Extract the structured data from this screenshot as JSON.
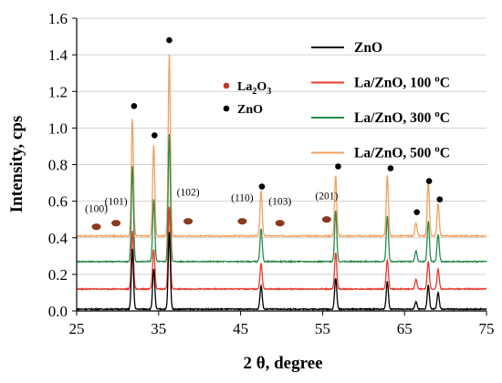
{
  "chart_data": {
    "type": "line",
    "title": "",
    "xlabel": "2 θ, degree",
    "ylabel": "Intensity, cps",
    "xlim": [
      25,
      75
    ],
    "ylim": [
      0,
      1.6
    ],
    "xticks": [
      25,
      35,
      45,
      55,
      65,
      75
    ],
    "yticks": [
      0.0,
      0.2,
      0.4,
      0.6,
      0.8,
      1.0,
      1.2,
      1.4,
      1.6
    ],
    "legend_position": "top-right",
    "peaks_2theta": [
      31.8,
      34.4,
      36.3,
      47.5,
      56.6,
      62.9,
      66.4,
      67.9,
      69.1
    ],
    "series": [
      {
        "name": "ZnO",
        "color": "#000000",
        "baseline": 0.01,
        "peak_heights": [
          0.33,
          0.22,
          0.42,
          0.13,
          0.17,
          0.15,
          0.04,
          0.13,
          0.09
        ]
      },
      {
        "name": "La/ZnO, 100 oC",
        "color": "#e8392b",
        "baseline": 0.12,
        "peak_heights": [
          0.32,
          0.22,
          0.45,
          0.14,
          0.2,
          0.16,
          0.05,
          0.15,
          0.11
        ]
      },
      {
        "name": "La/ZnO, 300 oC",
        "color": "#2a8a4a",
        "baseline": 0.27,
        "peak_heights": [
          0.52,
          0.34,
          0.7,
          0.18,
          0.28,
          0.25,
          0.06,
          0.22,
          0.15
        ]
      },
      {
        "name": "La/ZnO, 500 oC",
        "color": "#f0a060",
        "baseline": 0.41,
        "peak_heights": [
          0.64,
          0.5,
          0.99,
          0.25,
          0.33,
          0.33,
          0.07,
          0.3,
          0.18
        ]
      }
    ],
    "phase_legend": [
      {
        "label": "La",
        "sub": "2",
        "mid": "O",
        "sub2": "3",
        "color": "#c0392b"
      },
      {
        "label": "ZnO",
        "color": "#000000"
      }
    ],
    "zno_markers": [
      {
        "x": 32.0,
        "y": 1.12
      },
      {
        "x": 34.5,
        "y": 0.96
      },
      {
        "x": 36.3,
        "y": 1.48
      },
      {
        "x": 47.6,
        "y": 0.68
      },
      {
        "x": 56.9,
        "y": 0.79
      },
      {
        "x": 63.3,
        "y": 0.78
      },
      {
        "x": 66.5,
        "y": 0.54
      },
      {
        "x": 68.0,
        "y": 0.71
      },
      {
        "x": 69.3,
        "y": 0.61
      }
    ],
    "la2o3_markers": [
      {
        "x": 27.4,
        "y": 0.46,
        "label": "(100)",
        "label_y": 0.54
      },
      {
        "x": 29.8,
        "y": 0.48,
        "label": "(101)",
        "label_y": 0.58
      },
      {
        "x": 38.6,
        "y": 0.49,
        "label": "(102)",
        "label_y": 0.63
      },
      {
        "x": 45.2,
        "y": 0.49,
        "label": "(110)",
        "label_y": 0.6
      },
      {
        "x": 49.8,
        "y": 0.48,
        "label": "(103)",
        "label_y": 0.58
      },
      {
        "x": 55.5,
        "y": 0.5,
        "label": "(201)",
        "label_y": 0.61
      }
    ]
  }
}
